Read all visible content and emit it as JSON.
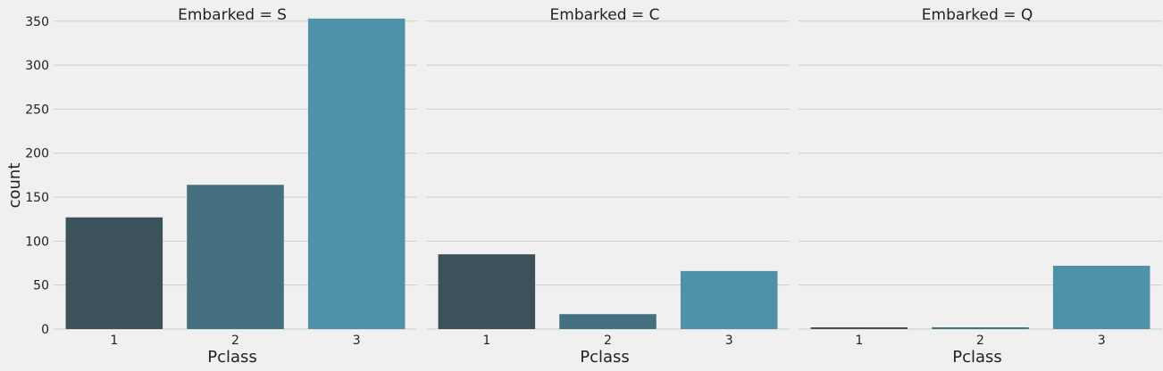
{
  "chart_data": {
    "type": "bar",
    "categories": [
      "1",
      "2",
      "3"
    ],
    "xlabel": "Pclass",
    "ylabel": "count",
    "ylim": [
      0,
      365
    ],
    "yticks": [
      0,
      50,
      100,
      150,
      200,
      250,
      300,
      350
    ],
    "grid": "horizontal",
    "bar_colors": [
      "#3b525a",
      "#45707f",
      "#4f91a9"
    ],
    "background": "#f0f0f0",
    "panels": [
      {
        "title": "Embarked = S",
        "values": [
          127,
          164,
          353
        ]
      },
      {
        "title": "Embarked = C",
        "values": [
          85,
          17,
          66
        ]
      },
      {
        "title": "Embarked = Q",
        "values": [
          2,
          2,
          72
        ]
      }
    ]
  }
}
